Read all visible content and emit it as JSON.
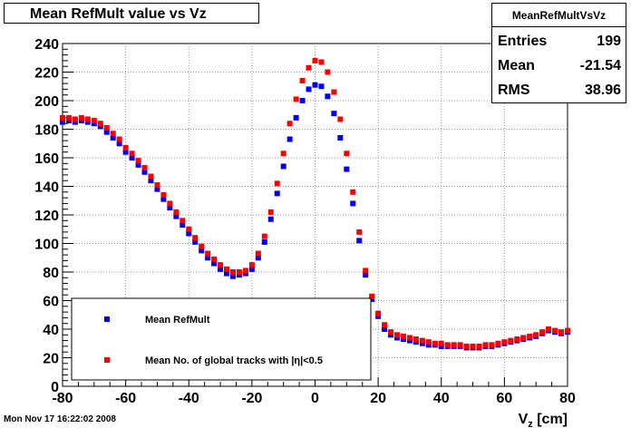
{
  "title": "Mean RefMult value vs Vz",
  "footer": "Mon Nov 17 16:22:02 2008",
  "stats": {
    "name": "MeanRefMultVsVz",
    "entries_label": "Entries",
    "entries_value": "199",
    "mean_label": "Mean",
    "mean_value": "-21.54",
    "rms_label": "RMS",
    "rms_value": "38.96"
  },
  "colors": {
    "series_blue": "#0000ff",
    "series_red": "#ff0000",
    "grid": "#9a9a9a"
  },
  "chart_data": {
    "type": "scatter",
    "title": "Mean RefMult value vs Vz",
    "xlabel": "V_z [cm]",
    "ylabel": "",
    "xlim": [
      -80,
      80
    ],
    "ylim": [
      0,
      240
    ],
    "x_ticks": [
      -80,
      -60,
      -40,
      -20,
      0,
      20,
      40,
      60,
      80
    ],
    "y_ticks": [
      0,
      20,
      40,
      60,
      80,
      100,
      120,
      140,
      160,
      180,
      200,
      220,
      240
    ],
    "grid": true,
    "legend_position": "bottom-left",
    "series": [
      {
        "name": "Mean RefMult",
        "color": "#0000ff",
        "points": [
          [
            -80,
            185
          ],
          [
            -78,
            186
          ],
          [
            -76,
            185
          ],
          [
            -74,
            186
          ],
          [
            -72,
            185
          ],
          [
            -70,
            184
          ],
          [
            -68,
            182
          ],
          [
            -66,
            178
          ],
          [
            -64,
            174
          ],
          [
            -62,
            170
          ],
          [
            -60,
            164
          ],
          [
            -58,
            160
          ],
          [
            -56,
            155
          ],
          [
            -54,
            150
          ],
          [
            -52,
            144
          ],
          [
            -50,
            138
          ],
          [
            -48,
            131
          ],
          [
            -46,
            125
          ],
          [
            -44,
            119
          ],
          [
            -42,
            113
          ],
          [
            -40,
            107
          ],
          [
            -38,
            101
          ],
          [
            -36,
            95
          ],
          [
            -34,
            90
          ],
          [
            -32,
            86
          ],
          [
            -30,
            82
          ],
          [
            -28,
            79
          ],
          [
            -26,
            77
          ],
          [
            -24,
            78
          ],
          [
            -22,
            79
          ],
          [
            -20,
            82
          ],
          [
            -18,
            90
          ],
          [
            -16,
            101
          ],
          [
            -14,
            117
          ],
          [
            -12,
            135
          ],
          [
            -10,
            154
          ],
          [
            -8,
            173
          ],
          [
            -6,
            188
          ],
          [
            -4,
            200
          ],
          [
            -2,
            208
          ],
          [
            0,
            211
          ],
          [
            2,
            210
          ],
          [
            4,
            203
          ],
          [
            6,
            191
          ],
          [
            8,
            174
          ],
          [
            10,
            152
          ],
          [
            12,
            128
          ],
          [
            14,
            102
          ],
          [
            16,
            78
          ],
          [
            18,
            61
          ],
          [
            20,
            49
          ],
          [
            22,
            40
          ],
          [
            24,
            36
          ],
          [
            26,
            34
          ],
          [
            28,
            33
          ],
          [
            30,
            32
          ],
          [
            32,
            31
          ],
          [
            34,
            30
          ],
          [
            36,
            29
          ],
          [
            38,
            29
          ],
          [
            40,
            28
          ],
          [
            42,
            28
          ],
          [
            44,
            28
          ],
          [
            46,
            28
          ],
          [
            48,
            27
          ],
          [
            50,
            27
          ],
          [
            52,
            27
          ],
          [
            54,
            28
          ],
          [
            56,
            28
          ],
          [
            58,
            29
          ],
          [
            60,
            30
          ],
          [
            62,
            31
          ],
          [
            64,
            32
          ],
          [
            66,
            33
          ],
          [
            68,
            34
          ],
          [
            70,
            35
          ],
          [
            72,
            37
          ],
          [
            74,
            39
          ],
          [
            76,
            38
          ],
          [
            78,
            37
          ],
          [
            80,
            38
          ]
        ]
      },
      {
        "name": "Mean No. of global tracks with |η|<0.5",
        "color": "#ff0000",
        "points": [
          [
            -80,
            188
          ],
          [
            -78,
            188
          ],
          [
            -76,
            187
          ],
          [
            -74,
            188
          ],
          [
            -72,
            187
          ],
          [
            -70,
            186
          ],
          [
            -68,
            184
          ],
          [
            -66,
            181
          ],
          [
            -64,
            177
          ],
          [
            -62,
            173
          ],
          [
            -60,
            167
          ],
          [
            -58,
            163
          ],
          [
            -56,
            158
          ],
          [
            -54,
            153
          ],
          [
            -52,
            147
          ],
          [
            -50,
            141
          ],
          [
            -48,
            134
          ],
          [
            -46,
            128
          ],
          [
            -44,
            122
          ],
          [
            -42,
            116
          ],
          [
            -40,
            110
          ],
          [
            -38,
            104
          ],
          [
            -36,
            98
          ],
          [
            -34,
            93
          ],
          [
            -32,
            89
          ],
          [
            -30,
            85
          ],
          [
            -28,
            82
          ],
          [
            -26,
            80
          ],
          [
            -24,
            80
          ],
          [
            -22,
            81
          ],
          [
            -20,
            85
          ],
          [
            -18,
            93
          ],
          [
            -16,
            105
          ],
          [
            -14,
            122
          ],
          [
            -12,
            142
          ],
          [
            -10,
            163
          ],
          [
            -8,
            184
          ],
          [
            -6,
            201
          ],
          [
            -4,
            214
          ],
          [
            -2,
            223
          ],
          [
            0,
            228
          ],
          [
            2,
            227
          ],
          [
            4,
            220
          ],
          [
            6,
            206
          ],
          [
            8,
            187
          ],
          [
            10,
            163
          ],
          [
            12,
            136
          ],
          [
            14,
            108
          ],
          [
            16,
            81
          ],
          [
            18,
            63
          ],
          [
            20,
            51
          ],
          [
            22,
            43
          ],
          [
            24,
            38
          ],
          [
            26,
            36
          ],
          [
            28,
            35
          ],
          [
            30,
            34
          ],
          [
            32,
            33
          ],
          [
            34,
            32
          ],
          [
            36,
            31
          ],
          [
            38,
            30
          ],
          [
            40,
            30
          ],
          [
            42,
            29
          ],
          [
            44,
            29
          ],
          [
            46,
            29
          ],
          [
            48,
            28
          ],
          [
            50,
            28
          ],
          [
            52,
            28
          ],
          [
            54,
            29
          ],
          [
            56,
            29
          ],
          [
            58,
            30
          ],
          [
            60,
            31
          ],
          [
            62,
            32
          ],
          [
            64,
            33
          ],
          [
            66,
            34
          ],
          [
            68,
            35
          ],
          [
            70,
            36
          ],
          [
            72,
            38
          ],
          [
            74,
            40
          ],
          [
            76,
            39
          ],
          [
            78,
            38
          ],
          [
            80,
            39
          ]
        ]
      }
    ]
  }
}
